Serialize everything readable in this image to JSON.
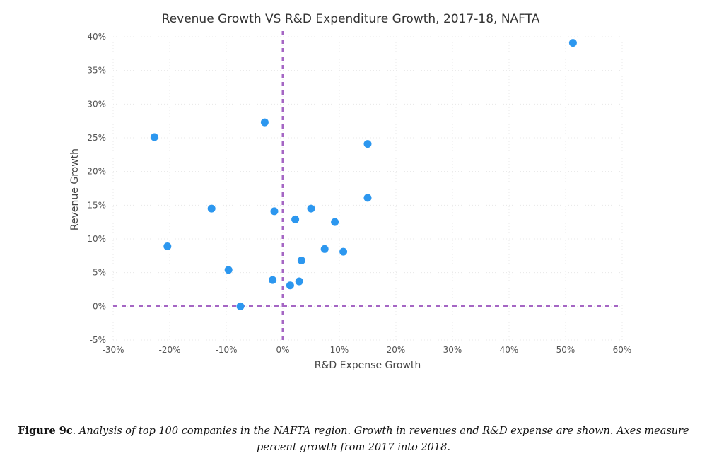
{
  "chart_data": {
    "type": "scatter",
    "title": "Revenue Growth VS R&D Expenditure Growth, 2017-18, NAFTA",
    "xlabel": "R&D Expense Growth",
    "ylabel": "Revenue Growth",
    "xlim": [
      -30,
      60
    ],
    "ylim": [
      -5,
      40
    ],
    "x_ticks": [
      -30,
      -20,
      -10,
      0,
      10,
      20,
      30,
      40,
      50,
      60
    ],
    "y_ticks": [
      -5,
      0,
      5,
      10,
      15,
      20,
      25,
      30,
      35,
      40
    ],
    "x_tick_labels": [
      "-30%",
      "-20%",
      "-10%",
      "0%",
      "10%",
      "20%",
      "30%",
      "40%",
      "50%",
      "60%"
    ],
    "y_tick_labels": [
      "-5%",
      "0%",
      "5%",
      "10%",
      "15%",
      "20%",
      "25%",
      "30%",
      "35%",
      "40%"
    ],
    "unit": "%",
    "grid": true,
    "reference_lines": {
      "x": 0,
      "y": 0,
      "style": "dashed",
      "color": "#a566c4"
    },
    "marker_color": "#2c97ef",
    "points": [
      {
        "x": -22.7,
        "y": 25.1
      },
      {
        "x": -20.4,
        "y": 8.9
      },
      {
        "x": -12.6,
        "y": 14.5
      },
      {
        "x": -9.6,
        "y": 5.4
      },
      {
        "x": -7.5,
        "y": 0.0
      },
      {
        "x": -3.2,
        "y": 27.3
      },
      {
        "x": -1.8,
        "y": 3.9
      },
      {
        "x": -1.5,
        "y": 14.1
      },
      {
        "x": 1.3,
        "y": 3.1
      },
      {
        "x": 2.2,
        "y": 12.9
      },
      {
        "x": 2.9,
        "y": 3.7
      },
      {
        "x": 3.3,
        "y": 6.8
      },
      {
        "x": 5.0,
        "y": 14.5
      },
      {
        "x": 7.4,
        "y": 8.5
      },
      {
        "x": 9.2,
        "y": 12.5
      },
      {
        "x": 10.7,
        "y": 8.1
      },
      {
        "x": 15.0,
        "y": 24.1
      },
      {
        "x": 15.0,
        "y": 16.1
      },
      {
        "x": 51.3,
        "y": 39.1
      }
    ]
  },
  "caption": {
    "label": "Figure 9c",
    "text": ". Analysis of top 100 companies in the NAFTA region. Growth in revenues and R&D expense are shown. Axes measure percent growth from 2017 into 2018."
  }
}
